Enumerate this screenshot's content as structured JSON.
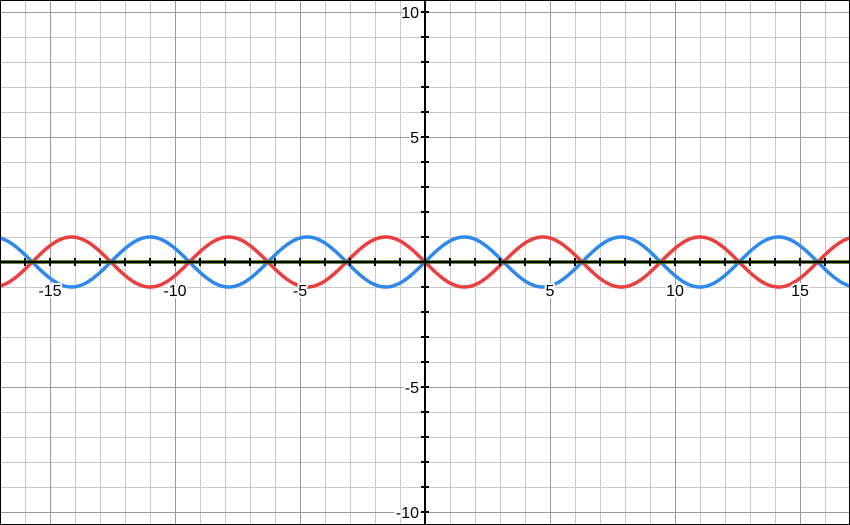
{
  "chart_data": {
    "type": "line",
    "title": "",
    "xlabel": "",
    "ylabel": "",
    "xlim": [
      -17,
      17
    ],
    "ylim": [
      -10.5,
      10.5
    ],
    "grid": true,
    "x_ticks": [
      -15,
      -10,
      -5,
      5,
      10,
      15
    ],
    "x_tick_labels": [
      "-15",
      "-10",
      "-5",
      "5",
      "10",
      "15"
    ],
    "y_ticks": [
      10,
      5,
      -5,
      -10
    ],
    "y_tick_labels": [
      "10",
      "5",
      "-5",
      "-10"
    ],
    "series": [
      {
        "color": "#2d89ef",
        "function": "sin",
        "amplitude": 1,
        "frequency": 1,
        "x_range": [
          -17,
          17
        ]
      },
      {
        "color": "#ee3d3d",
        "function": "-sin",
        "amplitude": 1,
        "frequency": 1,
        "x_range": [
          -17,
          17
        ]
      },
      {
        "color": "#2d6a04",
        "function": "constant",
        "value": 0,
        "x_range": [
          -17,
          17
        ]
      }
    ]
  }
}
